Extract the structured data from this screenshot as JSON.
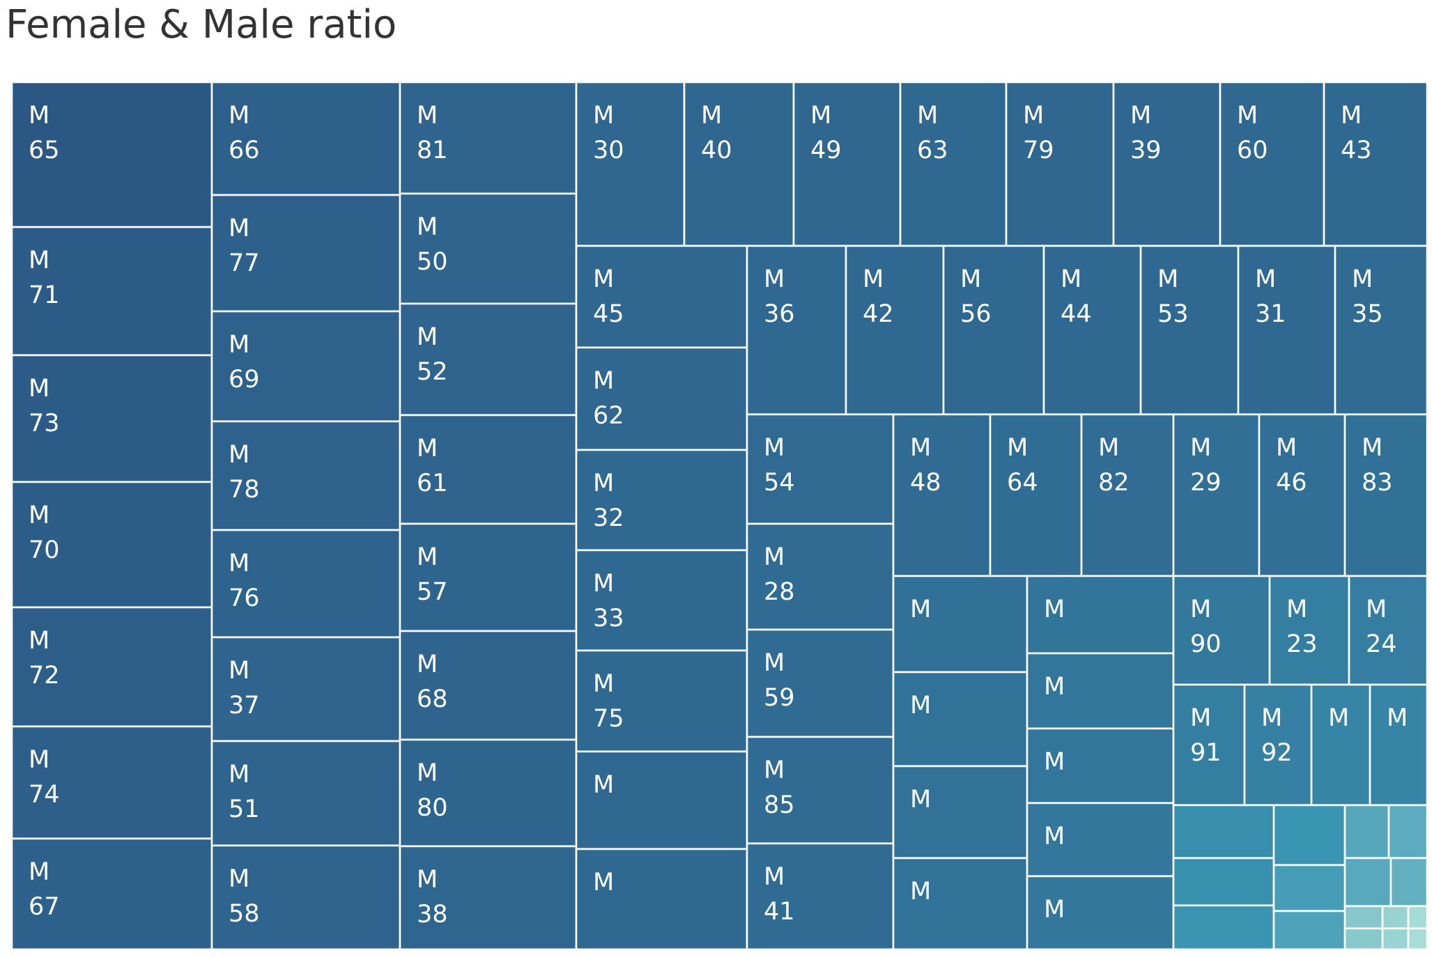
{
  "title": "Female & Male ratio",
  "chart_data": {
    "type": "treemap",
    "title": "Female & Male ratio",
    "color_scale": {
      "dark": "#2b5784",
      "light": "#a7ddd6"
    },
    "tiles": [
      {
        "gender": "M",
        "age": "65"
      },
      {
        "gender": "M",
        "age": "71"
      },
      {
        "gender": "M",
        "age": "73"
      },
      {
        "gender": "M",
        "age": "70"
      },
      {
        "gender": "M",
        "age": "72"
      },
      {
        "gender": "M",
        "age": "74"
      },
      {
        "gender": "M",
        "age": "67"
      },
      {
        "gender": "M",
        "age": "66"
      },
      {
        "gender": "M",
        "age": "77"
      },
      {
        "gender": "M",
        "age": "69"
      },
      {
        "gender": "M",
        "age": "78"
      },
      {
        "gender": "M",
        "age": "76"
      },
      {
        "gender": "M",
        "age": "37"
      },
      {
        "gender": "M",
        "age": "51"
      },
      {
        "gender": "M",
        "age": "58"
      },
      {
        "gender": "M",
        "age": "81"
      },
      {
        "gender": "M",
        "age": "50"
      },
      {
        "gender": "M",
        "age": "52"
      },
      {
        "gender": "M",
        "age": "61"
      },
      {
        "gender": "M",
        "age": "57"
      },
      {
        "gender": "M",
        "age": "68"
      },
      {
        "gender": "M",
        "age": "80"
      },
      {
        "gender": "M",
        "age": "38"
      },
      {
        "gender": "M",
        "age": "30"
      },
      {
        "gender": "M",
        "age": "40"
      },
      {
        "gender": "M",
        "age": "49"
      },
      {
        "gender": "M",
        "age": "63"
      },
      {
        "gender": "M",
        "age": "79"
      },
      {
        "gender": "M",
        "age": "39"
      },
      {
        "gender": "M",
        "age": "60"
      },
      {
        "gender": "M",
        "age": "43"
      },
      {
        "gender": "M",
        "age": "45"
      },
      {
        "gender": "M",
        "age": "62"
      },
      {
        "gender": "M",
        "age": "32"
      },
      {
        "gender": "M",
        "age": "33"
      },
      {
        "gender": "M",
        "age": "75"
      },
      {
        "gender": "M",
        "age": ""
      },
      {
        "gender": "M",
        "age": ""
      },
      {
        "gender": "M",
        "age": "36"
      },
      {
        "gender": "M",
        "age": "42"
      },
      {
        "gender": "M",
        "age": "56"
      },
      {
        "gender": "M",
        "age": "44"
      },
      {
        "gender": "M",
        "age": "53"
      },
      {
        "gender": "M",
        "age": "31"
      },
      {
        "gender": "M",
        "age": "35"
      },
      {
        "gender": "M",
        "age": "54"
      },
      {
        "gender": "M",
        "age": "28"
      },
      {
        "gender": "M",
        "age": "59"
      },
      {
        "gender": "M",
        "age": "85"
      },
      {
        "gender": "M",
        "age": "41"
      },
      {
        "gender": "M",
        "age": "48"
      },
      {
        "gender": "M",
        "age": "64"
      },
      {
        "gender": "M",
        "age": "82"
      },
      {
        "gender": "M",
        "age": "29"
      },
      {
        "gender": "M",
        "age": "46"
      },
      {
        "gender": "M",
        "age": "83"
      },
      {
        "gender": "M",
        "age": ""
      },
      {
        "gender": "M",
        "age": ""
      },
      {
        "gender": "M",
        "age": ""
      },
      {
        "gender": "M",
        "age": ""
      },
      {
        "gender": "M",
        "age": ""
      },
      {
        "gender": "M",
        "age": ""
      },
      {
        "gender": "M",
        "age": ""
      },
      {
        "gender": "M",
        "age": ""
      },
      {
        "gender": "M",
        "age": ""
      },
      {
        "gender": "M",
        "age": "90"
      },
      {
        "gender": "M",
        "age": "23"
      },
      {
        "gender": "M",
        "age": "24"
      },
      {
        "gender": "M",
        "age": "91"
      },
      {
        "gender": "M",
        "age": "92"
      },
      {
        "gender": "M",
        "age": ""
      },
      {
        "gender": "M",
        "age": ""
      },
      {
        "gender": "",
        "age": ""
      },
      {
        "gender": "",
        "age": ""
      },
      {
        "gender": "",
        "age": ""
      },
      {
        "gender": "",
        "age": ""
      },
      {
        "gender": "",
        "age": ""
      },
      {
        "gender": "",
        "age": ""
      },
      {
        "gender": "",
        "age": ""
      },
      {
        "gender": "",
        "age": ""
      },
      {
        "gender": "",
        "age": ""
      },
      {
        "gender": "",
        "age": ""
      },
      {
        "gender": "",
        "age": ""
      },
      {
        "gender": "",
        "age": ""
      },
      {
        "gender": "",
        "age": ""
      },
      {
        "gender": "",
        "age": ""
      },
      {
        "gender": "",
        "age": ""
      },
      {
        "gender": "",
        "age": ""
      },
      {
        "gender": "",
        "age": ""
      },
      {
        "gender": "",
        "age": ""
      }
    ]
  }
}
